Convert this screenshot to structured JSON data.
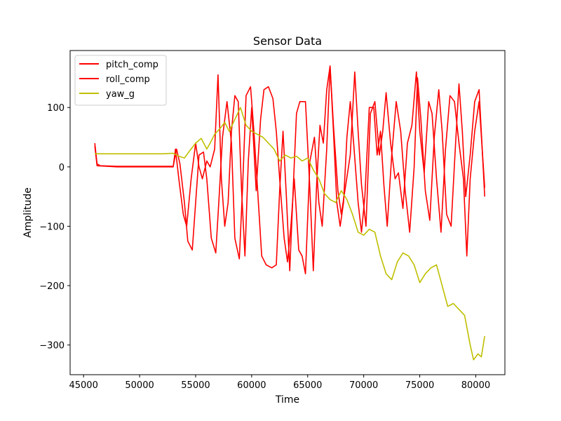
{
  "chart_data": {
    "type": "line",
    "title": "Sensor Data",
    "xlabel": "Time",
    "ylabel": "Amplitude",
    "xlim": [
      43800,
      82600
    ],
    "ylim": [
      -350,
      196
    ],
    "x_ticks": [
      45000,
      50000,
      55000,
      60000,
      65000,
      70000,
      75000,
      80000
    ],
    "y_ticks": [
      -300,
      -200,
      -100,
      0,
      100
    ],
    "grid": false,
    "legend_position": "upper-left",
    "series": [
      {
        "name": "pitch_comp",
        "color": "#ff0000",
        "points": [
          [
            46000,
            40
          ],
          [
            46200,
            5
          ],
          [
            46500,
            2
          ],
          [
            48000,
            1
          ],
          [
            50000,
            1
          ],
          [
            52000,
            1
          ],
          [
            53000,
            1
          ],
          [
            53300,
            30
          ],
          [
            53600,
            5
          ],
          [
            54000,
            -60
          ],
          [
            54300,
            -125
          ],
          [
            54700,
            -140
          ],
          [
            55000,
            -60
          ],
          [
            55300,
            20
          ],
          [
            55700,
            25
          ],
          [
            56000,
            -20
          ],
          [
            56400,
            -120
          ],
          [
            56800,
            -145
          ],
          [
            57100,
            -50
          ],
          [
            57400,
            50
          ],
          [
            57800,
            110
          ],
          [
            58200,
            40
          ],
          [
            58500,
            -120
          ],
          [
            58900,
            -155
          ],
          [
            59200,
            -30
          ],
          [
            59500,
            120
          ],
          [
            59900,
            135
          ],
          [
            60200,
            60
          ],
          [
            60500,
            -30
          ],
          [
            60900,
            -150
          ],
          [
            61300,
            -165
          ],
          [
            61800,
            -170
          ],
          [
            62200,
            -165
          ],
          [
            62500,
            -40
          ],
          [
            62800,
            60
          ],
          [
            63100,
            -50
          ],
          [
            63400,
            -175
          ],
          [
            63700,
            -40
          ],
          [
            64000,
            90
          ],
          [
            64300,
            110
          ],
          [
            64800,
            110
          ],
          [
            65200,
            -40
          ],
          [
            65500,
            -175
          ],
          [
            65800,
            -30
          ],
          [
            66100,
            70
          ],
          [
            66400,
            40
          ],
          [
            66700,
            130
          ],
          [
            67000,
            170
          ],
          [
            67300,
            60
          ],
          [
            67600,
            -60
          ],
          [
            67900,
            -100
          ],
          [
            68200,
            -60
          ],
          [
            68500,
            50
          ],
          [
            68800,
            110
          ],
          [
            69100,
            40
          ],
          [
            69500,
            -60
          ],
          [
            69800,
            -110
          ],
          [
            70100,
            -50
          ],
          [
            70500,
            100
          ],
          [
            70900,
            100
          ],
          [
            71200,
            20
          ],
          [
            71500,
            60
          ],
          [
            71800,
            -30
          ],
          [
            72100,
            -100
          ],
          [
            72500,
            20
          ],
          [
            72900,
            110
          ],
          [
            73300,
            60
          ],
          [
            73700,
            -40
          ],
          [
            74100,
            -110
          ],
          [
            74500,
            0
          ],
          [
            74800,
            150
          ],
          [
            75100,
            80
          ],
          [
            75500,
            -40
          ],
          [
            75900,
            -90
          ],
          [
            76300,
            50
          ],
          [
            76700,
            130
          ],
          [
            77000,
            60
          ],
          [
            77400,
            -80
          ],
          [
            77800,
            -100
          ],
          [
            78200,
            40
          ],
          [
            78500,
            140
          ],
          [
            78800,
            60
          ],
          [
            79100,
            -50
          ],
          [
            79500,
            20
          ],
          [
            79900,
            110
          ],
          [
            80300,
            130
          ],
          [
            80800,
            -50
          ]
        ]
      },
      {
        "name": "roll_comp",
        "color": "#ff0000",
        "points": [
          [
            46000,
            35
          ],
          [
            46200,
            2
          ],
          [
            48000,
            0
          ],
          [
            52000,
            0
          ],
          [
            53000,
            0
          ],
          [
            53200,
            30
          ],
          [
            53500,
            -20
          ],
          [
            53900,
            -80
          ],
          [
            54200,
            -100
          ],
          [
            54600,
            -20
          ],
          [
            55000,
            40
          ],
          [
            55300,
            0
          ],
          [
            55600,
            -20
          ],
          [
            56000,
            10
          ],
          [
            56300,
            0
          ],
          [
            56700,
            30
          ],
          [
            57000,
            155
          ],
          [
            57300,
            -20
          ],
          [
            57600,
            -100
          ],
          [
            57900,
            -60
          ],
          [
            58200,
            60
          ],
          [
            58500,
            120
          ],
          [
            58800,
            110
          ],
          [
            59100,
            -40
          ],
          [
            59400,
            -150
          ],
          [
            59700,
            10
          ],
          [
            60000,
            100
          ],
          [
            60400,
            -40
          ],
          [
            60800,
            80
          ],
          [
            61100,
            130
          ],
          [
            61500,
            135
          ],
          [
            61900,
            115
          ],
          [
            62200,
            60
          ],
          [
            62500,
            -20
          ],
          [
            62900,
            -120
          ],
          [
            63200,
            -160
          ],
          [
            63500,
            -100
          ],
          [
            63800,
            -20
          ],
          [
            64200,
            -140
          ],
          [
            64500,
            -150
          ],
          [
            64800,
            -180
          ],
          [
            65200,
            10
          ],
          [
            65600,
            50
          ],
          [
            66000,
            -60
          ],
          [
            66300,
            -100
          ],
          [
            66700,
            30
          ],
          [
            67000,
            170
          ],
          [
            67300,
            70
          ],
          [
            67700,
            -40
          ],
          [
            68000,
            -80
          ],
          [
            68400,
            -30
          ],
          [
            68800,
            20
          ],
          [
            69200,
            160
          ],
          [
            69500,
            60
          ],
          [
            69800,
            -30
          ],
          [
            70200,
            -100
          ],
          [
            70600,
            90
          ],
          [
            71000,
            110
          ],
          [
            71400,
            20
          ],
          [
            71700,
            60
          ],
          [
            72000,
            125
          ],
          [
            72400,
            40
          ],
          [
            72800,
            -20
          ],
          [
            73100,
            -10
          ],
          [
            73500,
            -70
          ],
          [
            73900,
            40
          ],
          [
            74300,
            70
          ],
          [
            74700,
            160
          ],
          [
            75000,
            60
          ],
          [
            75400,
            -10
          ],
          [
            75800,
            110
          ],
          [
            76100,
            90
          ],
          [
            76500,
            -20
          ],
          [
            76900,
            -110
          ],
          [
            77300,
            30
          ],
          [
            77700,
            120
          ],
          [
            78100,
            110
          ],
          [
            78500,
            40
          ],
          [
            78900,
            -20
          ],
          [
            79200,
            -150
          ],
          [
            79500,
            -20
          ],
          [
            79900,
            60
          ],
          [
            80300,
            110
          ],
          [
            80800,
            -35
          ]
        ]
      },
      {
        "name": "yaw_g",
        "color": "#bfbf00",
        "points": [
          [
            46000,
            22
          ],
          [
            48000,
            22
          ],
          [
            50000,
            22
          ],
          [
            52000,
            22
          ],
          [
            53000,
            23
          ],
          [
            53500,
            18
          ],
          [
            54000,
            15
          ],
          [
            54500,
            28
          ],
          [
            55000,
            40
          ],
          [
            55500,
            48
          ],
          [
            56000,
            30
          ],
          [
            56300,
            40
          ],
          [
            56700,
            55
          ],
          [
            57200,
            65
          ],
          [
            57600,
            75
          ],
          [
            58000,
            60
          ],
          [
            58500,
            80
          ],
          [
            59000,
            100
          ],
          [
            59500,
            70
          ],
          [
            60000,
            60
          ],
          [
            60500,
            55
          ],
          [
            61000,
            50
          ],
          [
            61500,
            40
          ],
          [
            62000,
            30
          ],
          [
            62500,
            10
          ],
          [
            63000,
            20
          ],
          [
            63500,
            15
          ],
          [
            64000,
            18
          ],
          [
            64500,
            10
          ],
          [
            65000,
            15
          ],
          [
            65500,
            -5
          ],
          [
            66000,
            -20
          ],
          [
            66500,
            -45
          ],
          [
            67000,
            -55
          ],
          [
            67500,
            -60
          ],
          [
            68000,
            -40
          ],
          [
            68500,
            -55
          ],
          [
            69000,
            -80
          ],
          [
            69500,
            -110
          ],
          [
            70000,
            -115
          ],
          [
            70500,
            -105
          ],
          [
            71000,
            -110
          ],
          [
            71500,
            -150
          ],
          [
            72000,
            -180
          ],
          [
            72500,
            -190
          ],
          [
            73000,
            -160
          ],
          [
            73500,
            -145
          ],
          [
            74000,
            -150
          ],
          [
            74500,
            -165
          ],
          [
            75000,
            -195
          ],
          [
            75500,
            -180
          ],
          [
            76000,
            -170
          ],
          [
            76500,
            -165
          ],
          [
            77000,
            -200
          ],
          [
            77500,
            -235
          ],
          [
            78000,
            -230
          ],
          [
            78500,
            -240
          ],
          [
            79000,
            -250
          ],
          [
            79500,
            -300
          ],
          [
            79800,
            -325
          ],
          [
            80200,
            -315
          ],
          [
            80500,
            -320
          ],
          [
            80800,
            -285
          ]
        ]
      }
    ]
  }
}
